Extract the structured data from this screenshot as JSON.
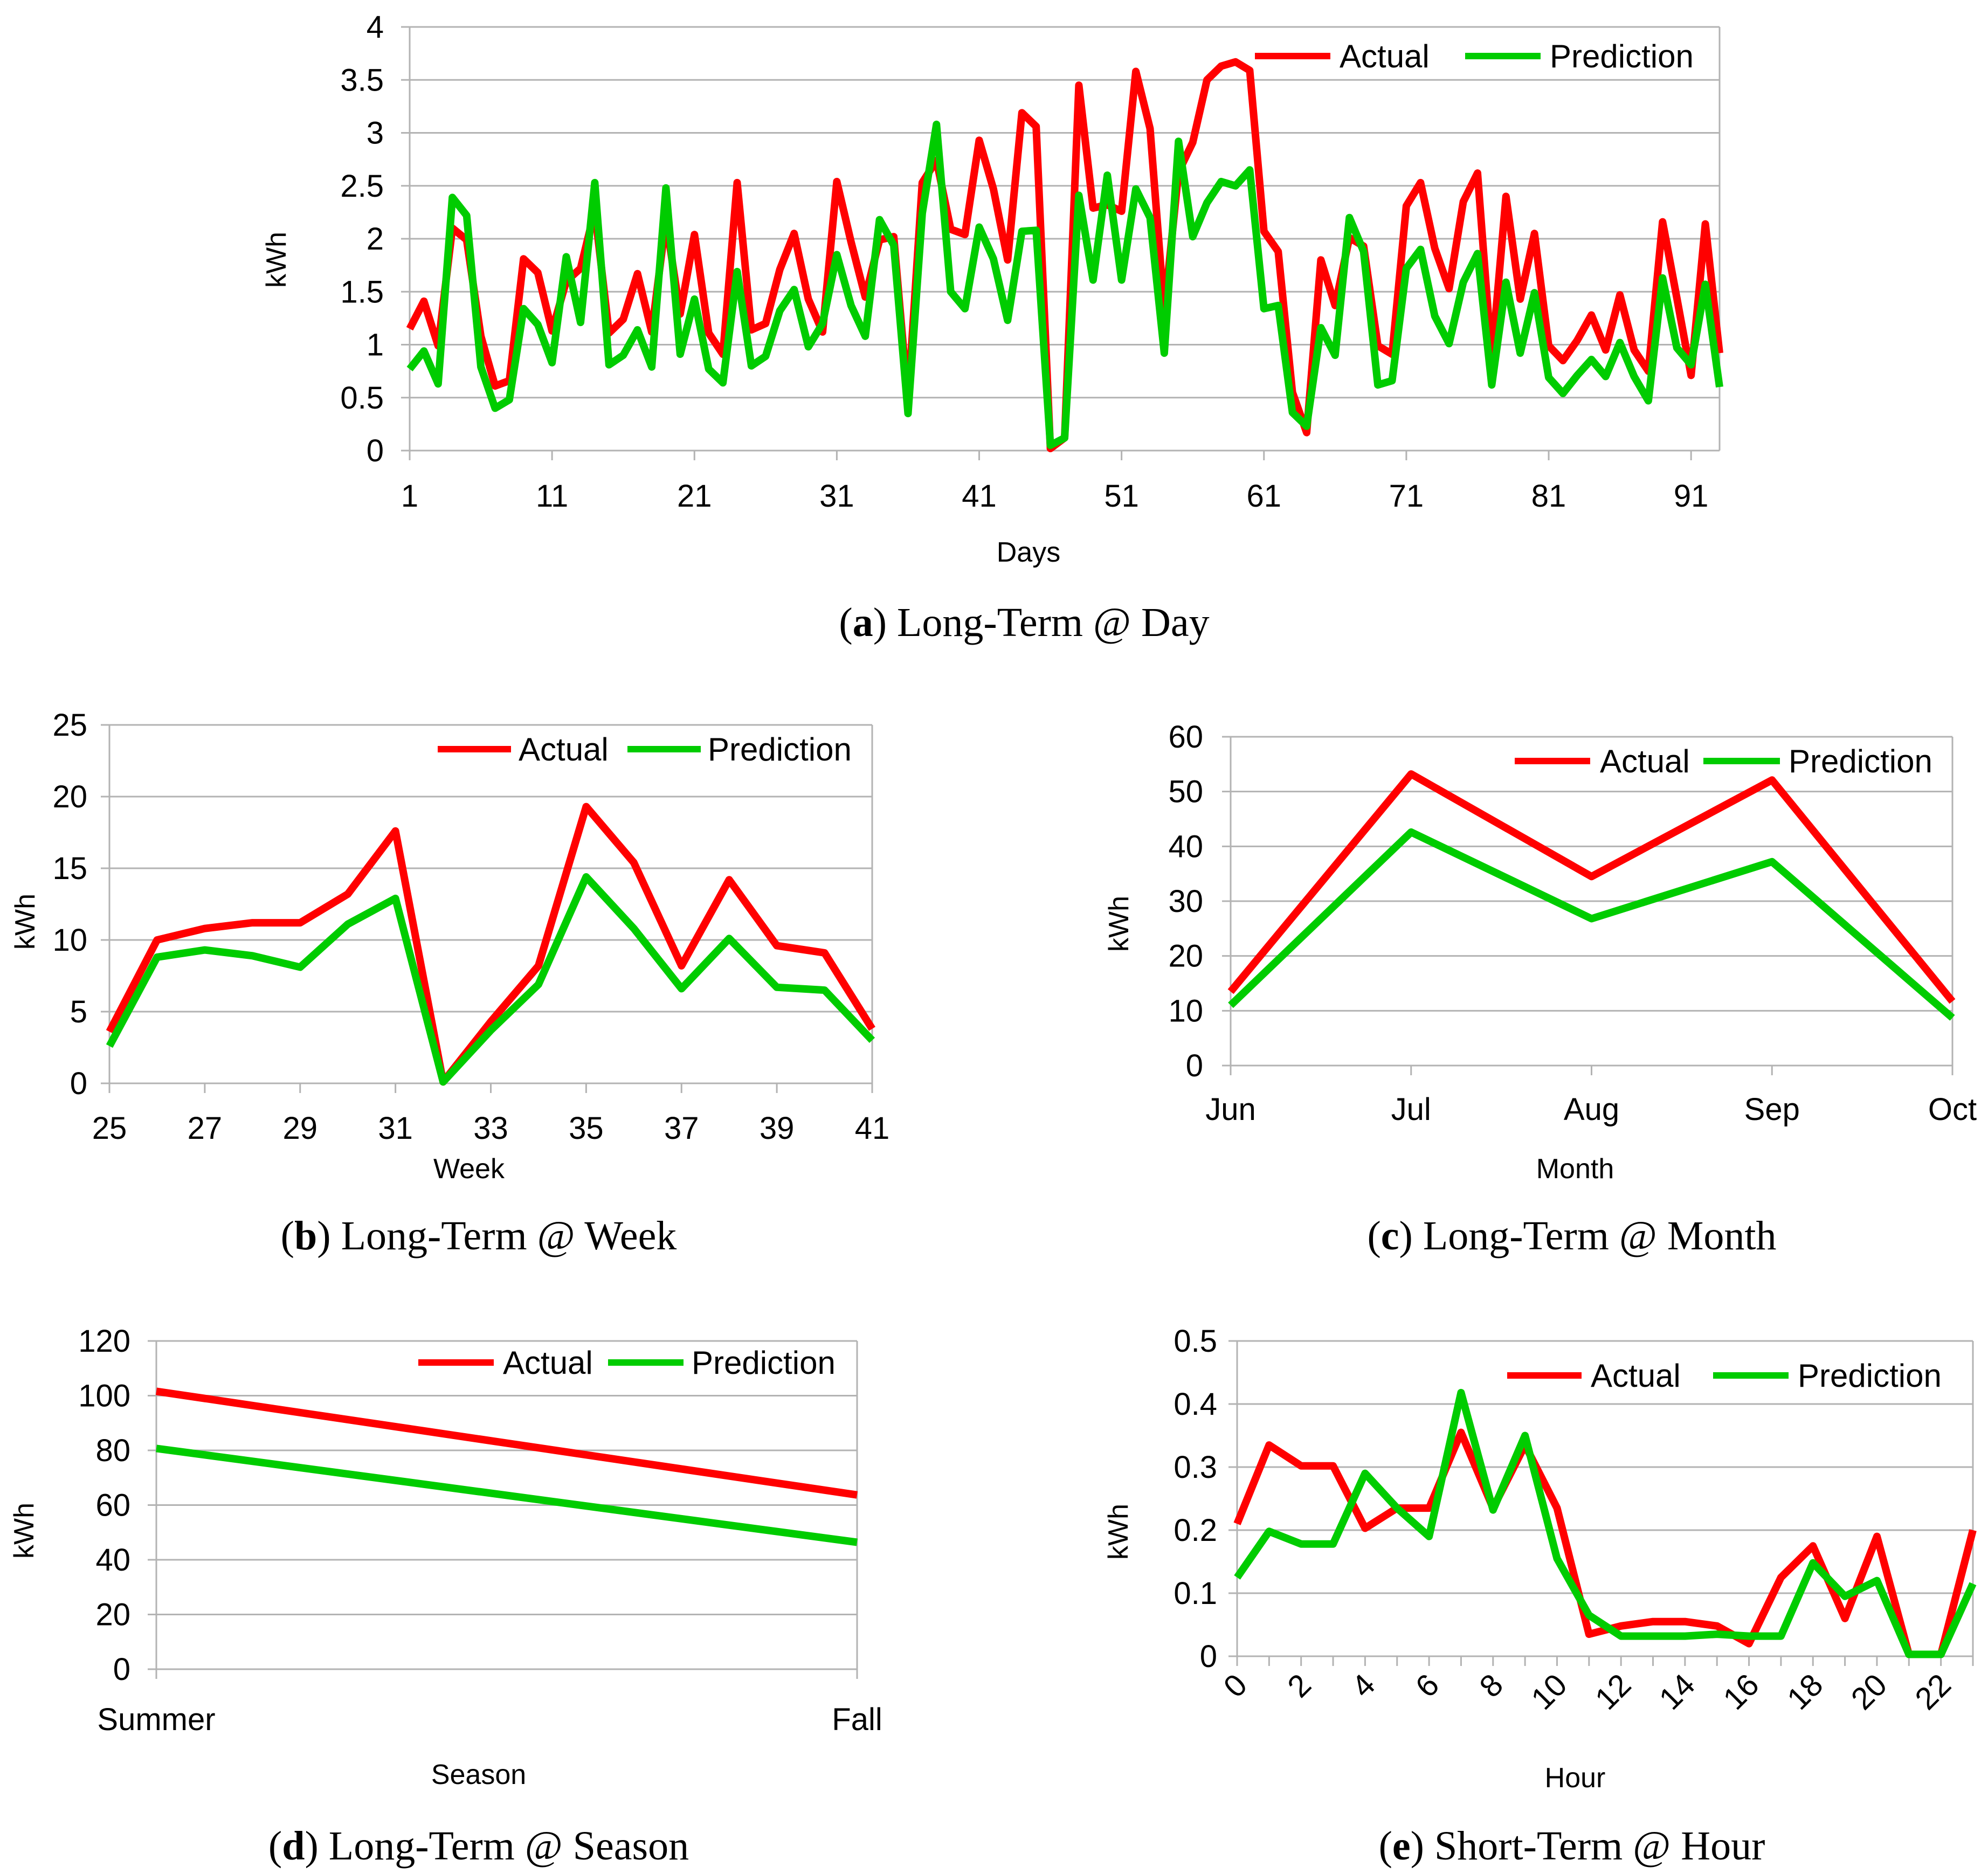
{
  "chart_data": [
    {
      "id": "a",
      "type": "line",
      "caption_letter": "a",
      "caption_text": "Long-Term @ Day",
      "xlabel": "Days",
      "ylabel": "kWh",
      "ylim": [
        0,
        4
      ],
      "yticks": [
        "0",
        "0.5",
        "1",
        "1.5",
        "2",
        "2.5",
        "3",
        "3.5",
        "4"
      ],
      "xtick_labels": [
        "1",
        "11",
        "21",
        "31",
        "41",
        "51",
        "61",
        "71",
        "81",
        "91"
      ],
      "x_start": 1,
      "legend": [
        "Actual",
        "Prediction"
      ],
      "series": [
        {
          "name": "Actual",
          "color": "#ff0000",
          "values": [
            1.15,
            1.41,
            0.99,
            2.1,
            1.99,
            1.08,
            0.61,
            0.66,
            1.81,
            1.68,
            1.13,
            1.6,
            1.72,
            2.27,
            1.11,
            1.24,
            1.67,
            1.12,
            2.18,
            1.29,
            2.04,
            1.11,
            0.91,
            2.53,
            1.14,
            1.2,
            1.71,
            2.05,
            1.43,
            1.12,
            2.54,
            1.97,
            1.45,
            1.99,
            2.02,
            0.47,
            2.53,
            2.74,
            2.09,
            2.04,
            2.93,
            2.47,
            1.8,
            3.19,
            3.06,
            0.02,
            0.12,
            3.45,
            2.29,
            2.32,
            2.26,
            3.58,
            3.04,
            1.31,
            2.63,
            2.91,
            3.5,
            3.63,
            3.67,
            3.59,
            2.07,
            1.88,
            0.55,
            0.17,
            1.8,
            1.37,
            2.01,
            1.93,
            0.99,
            0.91,
            2.31,
            2.53,
            1.91,
            1.53,
            2.35,
            2.62,
            0.86,
            2.4,
            1.43,
            2.05,
            0.99,
            0.85,
            1.04,
            1.28,
            0.95,
            1.47,
            0.95,
            0.75,
            2.16,
            1.44,
            0.71,
            2.14,
            0.92
          ]
        },
        {
          "name": "Prediction",
          "color": "#00cc00",
          "values": [
            0.77,
            0.94,
            0.63,
            2.39,
            2.22,
            0.79,
            0.4,
            0.48,
            1.34,
            1.19,
            0.83,
            1.83,
            1.21,
            2.53,
            0.81,
            0.9,
            1.14,
            0.79,
            2.48,
            0.91,
            1.43,
            0.77,
            0.64,
            1.69,
            0.8,
            0.89,
            1.32,
            1.52,
            0.98,
            1.2,
            1.85,
            1.37,
            1.08,
            2.18,
            1.94,
            0.35,
            2.24,
            3.08,
            1.5,
            1.34,
            2.11,
            1.81,
            1.23,
            2.07,
            2.08,
            0.05,
            0.12,
            2.41,
            1.61,
            2.6,
            1.61,
            2.47,
            2.2,
            0.92,
            2.92,
            2.02,
            2.34,
            2.54,
            2.5,
            2.65,
            1.34,
            1.37,
            0.36,
            0.23,
            1.16,
            0.9,
            2.2,
            1.88,
            0.62,
            0.66,
            1.72,
            1.9,
            1.27,
            1.01,
            1.59,
            1.86,
            0.62,
            1.59,
            0.92,
            1.49,
            0.69,
            0.54,
            0.71,
            0.86,
            0.7,
            1.02,
            0.7,
            0.47,
            1.63,
            0.97,
            0.81,
            1.57,
            0.6
          ]
        }
      ]
    },
    {
      "id": "b",
      "type": "line",
      "caption_letter": "b",
      "caption_text": "Long-Term @ Week",
      "xlabel": "Week",
      "ylabel": "kWh",
      "ylim": [
        0,
        25
      ],
      "yticks": [
        "0",
        "5",
        "10",
        "15",
        "20",
        "25"
      ],
      "categories": [
        25,
        26,
        27,
        28,
        29,
        30,
        31,
        32,
        33,
        34,
        35,
        36,
        37,
        38,
        39,
        40,
        41
      ],
      "xtick_labels": [
        "25",
        "27",
        "29",
        "31",
        "33",
        "35",
        "37",
        "39",
        "41"
      ],
      "legend": [
        "Actual",
        "Prediction"
      ],
      "series": [
        {
          "name": "Actual",
          "color": "#ff0000",
          "values": [
            3.6,
            10.0,
            10.8,
            11.2,
            11.2,
            13.2,
            17.6,
            0.1,
            4.3,
            8.2,
            19.3,
            15.4,
            8.2,
            14.2,
            9.6,
            9.1,
            3.8
          ]
        },
        {
          "name": "Prediction",
          "color": "#00cc00",
          "values": [
            2.6,
            8.8,
            9.3,
            8.9,
            8.1,
            11.1,
            12.9,
            0.1,
            3.7,
            6.9,
            14.4,
            10.8,
            6.6,
            10.1,
            6.7,
            6.5,
            3.0
          ]
        }
      ]
    },
    {
      "id": "c",
      "type": "line",
      "caption_letter": "c",
      "caption_text": "Long-Term @ Month",
      "xlabel": "Month",
      "ylabel": "kWh",
      "ylim": [
        0,
        60
      ],
      "yticks": [
        "0",
        "10",
        "20",
        "30",
        "40",
        "50",
        "60"
      ],
      "categories": [
        "Jun",
        "Jul",
        "Aug",
        "Sep",
        "Oct"
      ],
      "legend": [
        "Actual",
        "Prediction"
      ],
      "series": [
        {
          "name": "Actual",
          "color": "#ff0000",
          "values": [
            13.5,
            53.2,
            34.5,
            52.1,
            11.7
          ]
        },
        {
          "name": "Prediction",
          "color": "#00cc00",
          "values": [
            11.0,
            42.6,
            26.8,
            37.2,
            8.7
          ]
        }
      ]
    },
    {
      "id": "d",
      "type": "line",
      "caption_letter": "d",
      "caption_text": "Long-Term @ Season",
      "xlabel": "Season",
      "ylabel": "kWh",
      "ylim": [
        0,
        120
      ],
      "yticks": [
        "0",
        "20",
        "40",
        "60",
        "80",
        "100",
        "120"
      ],
      "categories": [
        "Summer",
        "Fall"
      ],
      "legend": [
        "Actual",
        "Prediction"
      ],
      "series": [
        {
          "name": "Actual",
          "color": "#ff0000",
          "values": [
            101.6,
            63.7
          ]
        },
        {
          "name": "Prediction",
          "color": "#00cc00",
          "values": [
            80.7,
            46.4
          ]
        }
      ]
    },
    {
      "id": "e",
      "type": "line",
      "caption_letter": "e",
      "caption_text": "Short-Term @ Hour",
      "xlabel": "Hour",
      "ylabel": "kWh",
      "ylim": [
        0,
        0.5
      ],
      "yticks": [
        "0",
        "0.1",
        "0.2",
        "0.3",
        "0.4",
        "0.5"
      ],
      "categories": [
        0,
        1,
        2,
        3,
        4,
        5,
        6,
        7,
        8,
        9,
        10,
        11,
        12,
        13,
        14,
        15,
        16,
        17,
        18,
        19,
        20,
        21,
        22,
        23
      ],
      "xtick_labels": [
        "0",
        "2",
        "4",
        "6",
        "8",
        "10",
        "12",
        "14",
        "16",
        "18",
        "20",
        "22"
      ],
      "legend": [
        "Actual",
        "Prediction"
      ],
      "series": [
        {
          "name": "Actual",
          "color": "#ff0000",
          "values": [
            0.21,
            0.335,
            0.302,
            0.302,
            0.203,
            0.235,
            0.235,
            0.355,
            0.235,
            0.335,
            0.235,
            0.035,
            0.048,
            0.055,
            0.055,
            0.048,
            0.02,
            0.125,
            0.175,
            0.06,
            0.19,
            0.003,
            0.003,
            0.2
          ]
        },
        {
          "name": "Prediction",
          "color": "#00cc00",
          "values": [
            0.125,
            0.198,
            0.178,
            0.178,
            0.29,
            0.235,
            0.19,
            0.418,
            0.232,
            0.35,
            0.155,
            0.065,
            0.032,
            0.032,
            0.032,
            0.035,
            0.032,
            0.032,
            0.148,
            0.095,
            0.12,
            0.003,
            0.003,
            0.115
          ]
        }
      ]
    }
  ]
}
